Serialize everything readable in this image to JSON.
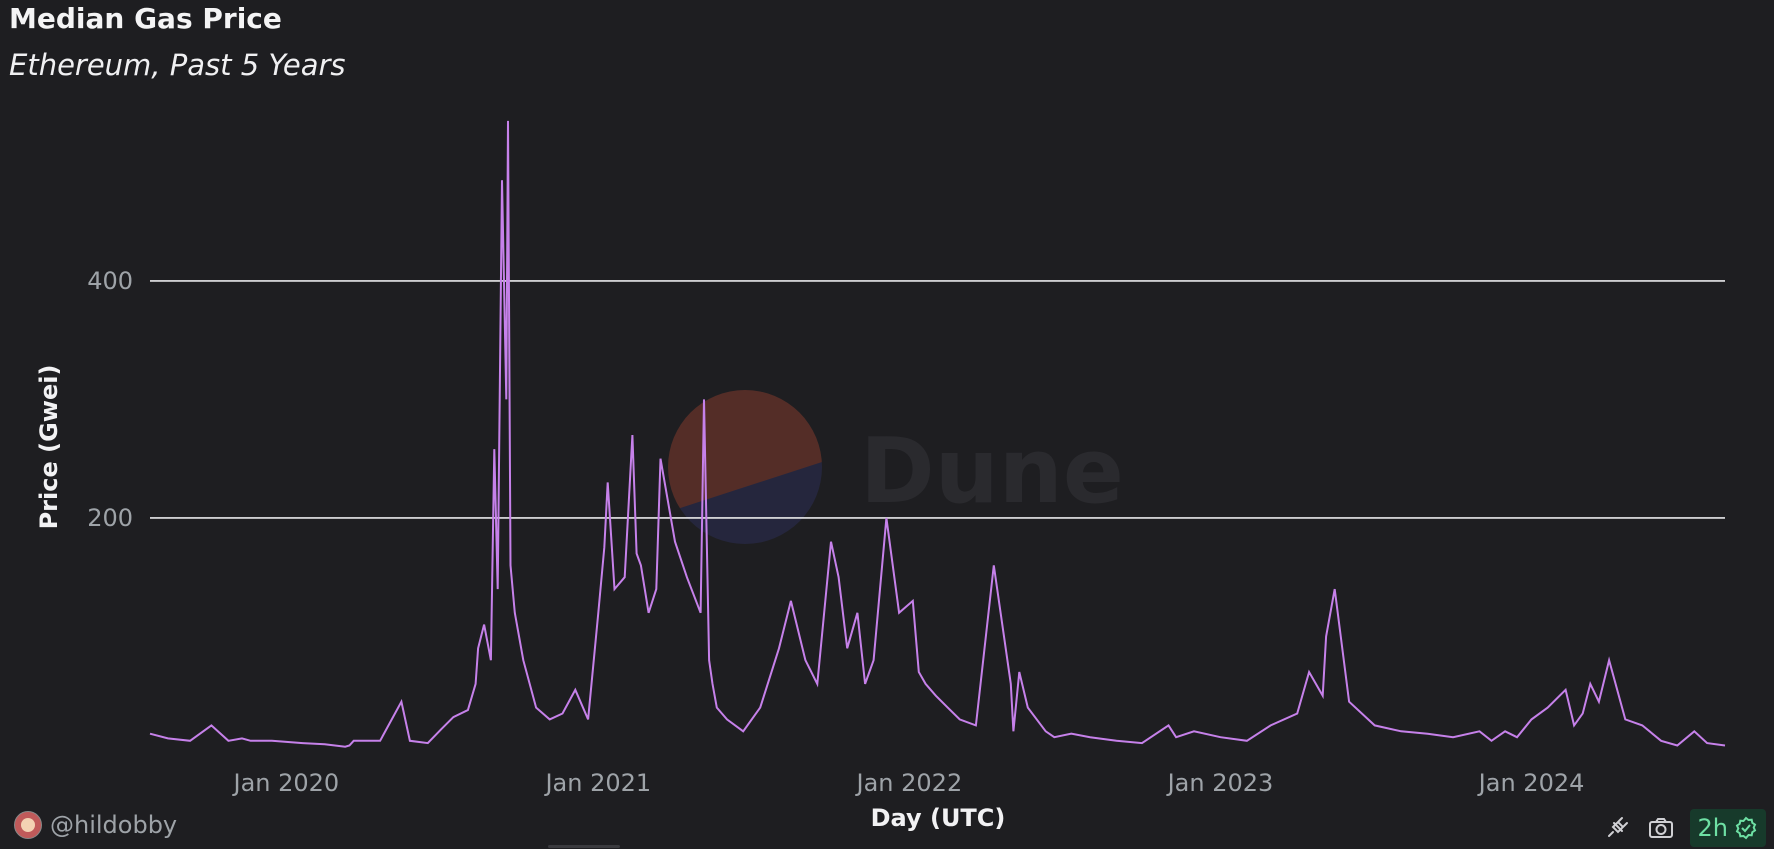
{
  "header": {
    "title": "Median Gas Price",
    "subtitle": "Ethereum, Past 5 Years"
  },
  "watermark": {
    "text": "Dune"
  },
  "footer": {
    "author": "@hildobby",
    "refresh_badge": "2h",
    "icons": [
      "plug-icon",
      "camera-icon",
      "check-shield-icon"
    ]
  },
  "colors": {
    "background": "#1e1e21",
    "line": "#c681ea",
    "grid": "#e8e8ea",
    "badge_bg": "#173a2b",
    "badge_text": "#6ee0a4"
  },
  "chart_data": {
    "type": "line",
    "title": "Median Gas Price",
    "subtitle": "Ethereum, Past 5 Years",
    "xlabel": "Day (UTC)",
    "ylabel": "Price (Gwei)",
    "x_ticks": [
      "Jan 2020",
      "Jan 2021",
      "Jan 2022",
      "Jan 2023",
      "Jan 2024"
    ],
    "y_ticks": [
      200,
      400
    ],
    "xlim": [
      "2019-07-25",
      "2024-08-15"
    ],
    "ylim": [
      0,
      540
    ],
    "grid": true,
    "legend": "none",
    "series": [
      {
        "values_note_x": "dates",
        "x": [
          "2019-07-25",
          "2019-08-15",
          "2019-09-10",
          "2019-10-05",
          "2019-10-25",
          "2019-11-10",
          "2019-11-20",
          "2019-12-15",
          "2020-01-20",
          "2020-02-15",
          "2020-03-10",
          "2020-03-15",
          "2020-03-20",
          "2020-04-20",
          "2020-05-15",
          "2020-05-25",
          "2020-06-15",
          "2020-07-01",
          "2020-07-15",
          "2020-08-01",
          "2020-08-10",
          "2020-08-13",
          "2020-08-20",
          "2020-08-28",
          "2020-09-01",
          "2020-09-05",
          "2020-09-10",
          "2020-09-15",
          "2020-09-17",
          "2020-09-20",
          "2020-09-25",
          "2020-10-05",
          "2020-10-20",
          "2020-11-05",
          "2020-11-20",
          "2020-12-05",
          "2020-12-20",
          "2021-01-01",
          "2021-01-08",
          "2021-01-12",
          "2021-01-20",
          "2021-02-01",
          "2021-02-10",
          "2021-02-15",
          "2021-02-20",
          "2021-03-01",
          "2021-03-10",
          "2021-03-15",
          "2021-04-01",
          "2021-04-15",
          "2021-05-01",
          "2021-05-05",
          "2021-05-11",
          "2021-05-15",
          "2021-05-20",
          "2021-06-01",
          "2021-06-20",
          "2021-07-10",
          "2021-08-01",
          "2021-08-15",
          "2021-09-01",
          "2021-09-15",
          "2021-10-01",
          "2021-10-10",
          "2021-10-20",
          "2021-11-01",
          "2021-11-10",
          "2021-11-20",
          "2021-12-05",
          "2021-12-20",
          "2022-01-05",
          "2022-01-12",
          "2022-01-20",
          "2022-02-01",
          "2022-02-15",
          "2022-03-01",
          "2022-03-20",
          "2022-04-10",
          "2022-04-30",
          "2022-05-03",
          "2022-05-10",
          "2022-05-20",
          "2022-06-10",
          "2022-06-20",
          "2022-07-10",
          "2022-08-01",
          "2022-09-01",
          "2022-10-01",
          "2022-11-01",
          "2022-11-10",
          "2022-12-01",
          "2023-01-01",
          "2023-02-01",
          "2023-03-01",
          "2023-04-01",
          "2023-04-15",
          "2023-05-01",
          "2023-05-05",
          "2023-05-15",
          "2023-06-01",
          "2023-07-01",
          "2023-08-01",
          "2023-09-01",
          "2023-10-01",
          "2023-11-01",
          "2023-11-15",
          "2023-12-01",
          "2023-12-15",
          "2024-01-01",
          "2024-01-20",
          "2024-02-10",
          "2024-02-20",
          "2024-03-01",
          "2024-03-10",
          "2024-03-20",
          "2024-04-01",
          "2024-04-20",
          "2024-05-10",
          "2024-06-01",
          "2024-06-20",
          "2024-07-10",
          "2024-07-25",
          "2024-08-15"
        ],
        "values": [
          18,
          14,
          12,
          25,
          12,
          14,
          12,
          12,
          10,
          9,
          7,
          8,
          12,
          12,
          45,
          12,
          10,
          22,
          32,
          38,
          60,
          90,
          110,
          80,
          258,
          140,
          485,
          300,
          535,
          160,
          120,
          80,
          40,
          30,
          35,
          55,
          30,
          120,
          175,
          230,
          140,
          150,
          270,
          170,
          160,
          120,
          140,
          250,
          180,
          150,
          120,
          300,
          80,
          60,
          40,
          30,
          20,
          40,
          90,
          130,
          80,
          60,
          180,
          150,
          90,
          120,
          60,
          80,
          200,
          120,
          130,
          70,
          60,
          50,
          40,
          30,
          25,
          160,
          60,
          20,
          70,
          40,
          20,
          15,
          18,
          15,
          12,
          10,
          25,
          15,
          20,
          15,
          12,
          25,
          35,
          70,
          50,
          100,
          140,
          45,
          25,
          20,
          18,
          15,
          20,
          12,
          20,
          15,
          30,
          40,
          55,
          25,
          35,
          60,
          45,
          80,
          30,
          25,
          12,
          8,
          20,
          10,
          8
        ]
      }
    ]
  }
}
